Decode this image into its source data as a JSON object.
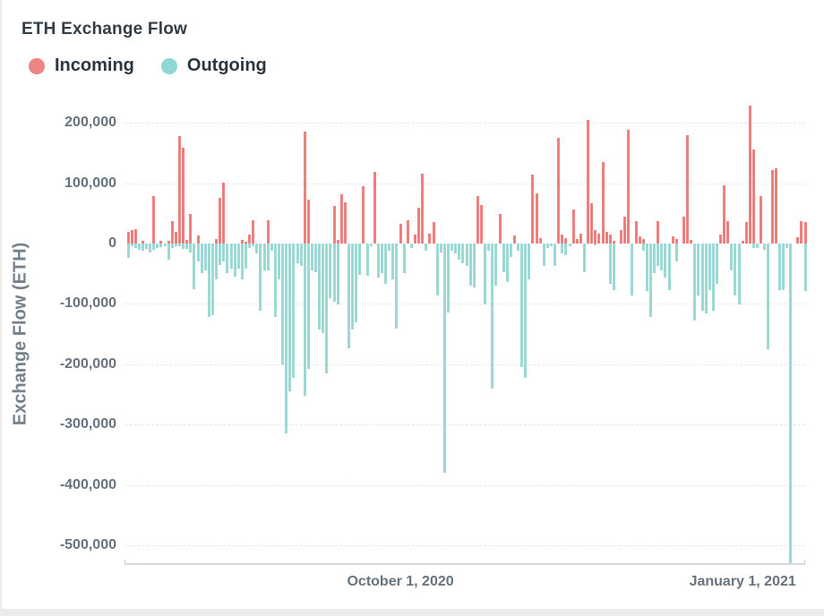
{
  "header": {
    "title": "ETH Exchange Flow"
  },
  "legend": {
    "incoming_label": "Incoming",
    "outgoing_label": "Outgoing"
  },
  "colors": {
    "incoming": "#ee7f7f",
    "outgoing": "#9cd9d4",
    "title_text": "#333d47",
    "axis_text": "#67737e",
    "gridline": "#e7e9ec"
  },
  "chart_data": {
    "type": "bar",
    "title": "ETH Exchange Flow",
    "xlabel": "",
    "ylabel": "Exchange Flow (ETH)",
    "ylim": [
      -540000,
      230000
    ],
    "grid": "dashed-horizontal",
    "legend_position": "top-left",
    "y_axis": {
      "ticks": [
        {
          "value": 200000,
          "label": "200,000"
        },
        {
          "value": 100000,
          "label": "100,000"
        },
        {
          "value": 0,
          "label": "0"
        },
        {
          "value": -100000,
          "label": "-100,000"
        },
        {
          "value": -200000,
          "label": "-200,000"
        },
        {
          "value": -300000,
          "label": "-300,000"
        },
        {
          "value": -400000,
          "label": "-400,000"
        },
        {
          "value": -500000,
          "label": "-500,000"
        }
      ]
    },
    "x_axis": {
      "ticks": [
        {
          "label": "October 1, 2020",
          "day": 74
        },
        {
          "label": "January 1, 2021",
          "day": 167
        }
      ]
    },
    "series": [
      {
        "name": "Incoming",
        "color": "#ee7f7f",
        "values": [
          20000,
          22000,
          24000,
          0,
          4000,
          0,
          0,
          79000,
          0,
          5000,
          0,
          4000,
          37000,
          19000,
          178000,
          158000,
          6000,
          49000,
          0,
          14000,
          0,
          0,
          0,
          0,
          8000,
          76000,
          101000,
          0,
          0,
          0,
          0,
          6000,
          3000,
          15000,
          39000,
          0,
          0,
          0,
          39000,
          0,
          0,
          0,
          0,
          0,
          0,
          0,
          0,
          0,
          186000,
          72000,
          0,
          0,
          0,
          0,
          0,
          0,
          63000,
          6000,
          81000,
          68000,
          0,
          0,
          0,
          0,
          95000,
          0,
          0,
          119000,
          0,
          0,
          0,
          0,
          0,
          0,
          33000,
          0,
          38000,
          0,
          15000,
          60000,
          115000,
          0,
          16000,
          36000,
          0,
          0,
          0,
          0,
          0,
          0,
          0,
          0,
          0,
          0,
          0,
          78000,
          64000,
          0,
          0,
          0,
          0,
          49000,
          0,
          0,
          0,
          13000,
          0,
          0,
          0,
          0,
          114000,
          83000,
          9000,
          0,
          0,
          0,
          0,
          175000,
          15000,
          9000,
          0,
          57000,
          7000,
          17000,
          0,
          205000,
          67000,
          22000,
          17000,
          135000,
          20000,
          15000,
          4000,
          0,
          22000,
          44000,
          188000,
          0,
          37000,
          12000,
          7000,
          0,
          0,
          0,
          37000,
          0,
          0,
          0,
          12000,
          7000,
          0,
          44000,
          180000,
          6000,
          0,
          0,
          0,
          0,
          0,
          0,
          0,
          15000,
          97000,
          37000,
          0,
          0,
          0,
          4000,
          35000,
          228000,
          156000,
          0,
          79000,
          0,
          0,
          121000,
          124000,
          0,
          0,
          0,
          0,
          0,
          10000,
          37000,
          36000
        ]
      },
      {
        "name": "Outgoing",
        "color": "#9cd9d4",
        "values": [
          -24000,
          -5000,
          -8000,
          -11000,
          -12000,
          -9000,
          -15000,
          -10000,
          -7000,
          -6000,
          -5000,
          -27000,
          -7000,
          -4000,
          -4000,
          -9000,
          -9000,
          -15000,
          -76000,
          -30000,
          -49000,
          -44000,
          -121000,
          -118000,
          -60000,
          -35000,
          -30000,
          -49000,
          -42000,
          -55000,
          -42000,
          -59000,
          -42000,
          -8000,
          -5000,
          -17000,
          -111000,
          -44000,
          -44000,
          -12000,
          -121000,
          -59000,
          -200000,
          -314000,
          -245000,
          -222000,
          -32000,
          -37000,
          -252000,
          -208000,
          -44000,
          -47000,
          -143000,
          -148000,
          -215000,
          -91000,
          -96000,
          -101000,
          0,
          0,
          -173000,
          -143000,
          -131000,
          -52000,
          0,
          -54000,
          -5000,
          0,
          -57000,
          -49000,
          -67000,
          -12000,
          -59000,
          -141000,
          0,
          -49000,
          0,
          -7000,
          0,
          0,
          0,
          -12000,
          0,
          0,
          -86000,
          -15000,
          -380000,
          -114000,
          -12000,
          -17000,
          -27000,
          -32000,
          -37000,
          -69000,
          -72000,
          0,
          0,
          -101000,
          -12000,
          -240000,
          -69000,
          0,
          -47000,
          -64000,
          -22000,
          0,
          -12000,
          -205000,
          -222000,
          -59000,
          0,
          0,
          0,
          -37000,
          -7000,
          -5000,
          -37000,
          0,
          -17000,
          -20000,
          -5000,
          0,
          0,
          0,
          -47000,
          0,
          0,
          -3000,
          0,
          0,
          0,
          -67000,
          -77000,
          0,
          0,
          0,
          0,
          -86000,
          0,
          0,
          -12000,
          -79000,
          -121000,
          -49000,
          -37000,
          -44000,
          -57000,
          -77000,
          0,
          -30000,
          0,
          0,
          0,
          0,
          -128000,
          -86000,
          -111000,
          -116000,
          -77000,
          -111000,
          -67000,
          0,
          0,
          0,
          -44000,
          -86000,
          -101000,
          0,
          0,
          0,
          -7000,
          -7000,
          0,
          -10000,
          -175000,
          0,
          0,
          -77000,
          -77000,
          -7000,
          -540000,
          0,
          0,
          0,
          -79000
        ]
      }
    ]
  }
}
